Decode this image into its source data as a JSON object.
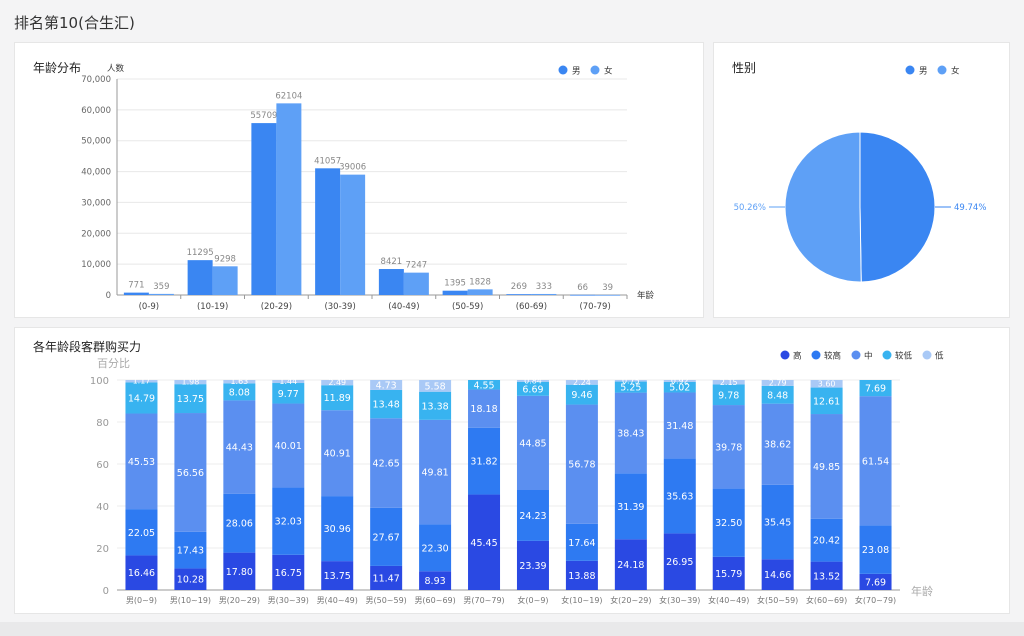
{
  "page": {
    "title": "排名第10(合生汇)"
  },
  "colors": {
    "male": "#3a86f2",
    "female": "#5ea0f6",
    "label": "#777777",
    "axis": "#999999",
    "grid": "#e8e8e8",
    "purchase_high": "#2a49e3",
    "purchase_mid_high": "#2e7af2",
    "purchase_mid": "#5b8ff0",
    "purchase_mid_low": "#38b3f0",
    "purchase_low": "#a9c9f6"
  },
  "chart_data": [
    {
      "id": "age-distribution",
      "type": "bar",
      "title": "年龄分布",
      "ylabel": "人数",
      "xlabel": "年龄",
      "ylim": [
        0,
        70000
      ],
      "yticks": [
        "0",
        "10,000",
        "20,000",
        "30,000",
        "40,000",
        "50,000",
        "60,000",
        "70,000"
      ],
      "categories": [
        "(0-9)",
        "(10-19)",
        "(20-29)",
        "(30-39)",
        "(40-49)",
        "(50-59)",
        "(60-69)",
        "(70-79)"
      ],
      "legend": "top-right",
      "series": [
        {
          "name": "男",
          "color": "#3a86f2",
          "values": [
            771,
            11295,
            55709,
            41057,
            8421,
            1395,
            269,
            66
          ]
        },
        {
          "name": "女",
          "color": "#5ea0f6",
          "values": [
            359,
            9298,
            62104,
            39006,
            7247,
            1828,
            333,
            39
          ]
        }
      ]
    },
    {
      "id": "gender",
      "type": "pie",
      "title": "性别",
      "legend": "top-right",
      "slices": [
        {
          "name": "男",
          "value": 49.74,
          "label": "49.74%",
          "color": "#3a86f2"
        },
        {
          "name": "女",
          "value": 50.26,
          "label": "50.26%",
          "color": "#5ea0f6"
        }
      ]
    },
    {
      "id": "purchase-power",
      "type": "bar",
      "stacked": true,
      "title": "各年龄段客群购买力",
      "ylabel": "百分比",
      "xlabel": "年龄",
      "ylim": [
        0,
        100
      ],
      "yticks": [
        "0",
        "20",
        "40",
        "60",
        "80",
        "100"
      ],
      "categories": [
        "男(0~9)",
        "男(10~19)",
        "男(20~29)",
        "男(30~39)",
        "男(40~49)",
        "男(50~59)",
        "男(60~69)",
        "男(70~79)",
        "女(0~9)",
        "女(10~19)",
        "女(20~29)",
        "女(30~39)",
        "女(40~49)",
        "女(50~59)",
        "女(60~69)",
        "女(70~79)"
      ],
      "legend": "top-right",
      "series": [
        {
          "name": "高",
          "color": "#2a49e3",
          "values": [
            16.46,
            10.28,
            17.8,
            16.75,
            13.75,
            11.47,
            8.93,
            45.45,
            23.39,
            13.88,
            24.18,
            26.95,
            15.79,
            14.66,
            13.52,
            7.69
          ]
        },
        {
          "name": "较高",
          "color": "#2e7af2",
          "values": [
            22.05,
            17.43,
            28.06,
            32.03,
            30.96,
            27.67,
            22.3,
            31.82,
            24.23,
            17.64,
            31.39,
            35.63,
            32.5,
            35.45,
            20.42,
            23.08
          ]
        },
        {
          "name": "中",
          "color": "#5b8ff0",
          "values": [
            45.53,
            56.56,
            44.43,
            40.01,
            40.91,
            42.65,
            49.81,
            18.18,
            44.85,
            56.78,
            38.43,
            31.48,
            39.78,
            38.62,
            49.85,
            61.54
          ]
        },
        {
          "name": "较低",
          "color": "#38b3f0",
          "values": [
            14.79,
            13.75,
            8.08,
            9.77,
            11.89,
            13.48,
            13.38,
            4.55,
            6.69,
            9.46,
            5.25,
            5.02,
            9.78,
            8.48,
            12.61,
            7.69
          ]
        },
        {
          "name": "低",
          "color": "#a9c9f6",
          "values": [
            1.17,
            1.98,
            1.63,
            1.44,
            2.49,
            4.73,
            5.58,
            0.0,
            0.84,
            2.24,
            0.75,
            0.92,
            2.15,
            2.79,
            3.6,
            0.0
          ]
        }
      ],
      "segment_labels": [
        [
          "16.46",
          "10.28",
          "17.80",
          "16.75",
          "13.75",
          "11.47",
          "8.93",
          "45.45",
          "23.39",
          "13.88",
          "24.18",
          "26.95",
          "15.79",
          "14.66",
          "13.52",
          "7.69"
        ],
        [
          "22.05",
          "17.43",
          "28.06",
          "32.03",
          "30.96",
          "27.67",
          "22.30",
          "31.82",
          "24.23",
          "17.64",
          "31.39",
          "35.63",
          "32.50",
          "35.45",
          "20.42",
          "23.08"
        ],
        [
          "45.53",
          "56.56",
          "44.43",
          "40.01",
          "40.91",
          "42.65",
          "49.81",
          "18.18",
          "44.85",
          "56.78",
          "38.43",
          "31.48",
          "39.78",
          "38.62",
          "49.85",
          "61.54"
        ],
        [
          "14.79",
          "13.75",
          "8.08",
          "9.77",
          "11.89",
          "13.48",
          "13.38",
          "4.55",
          "6.69",
          "9.46",
          "5.25",
          "5.02",
          "9.78",
          "8.48",
          "12.61",
          "7.69"
        ],
        [
          "1.17",
          "1.98",
          "1.63",
          "1.44",
          "2.49",
          "4.73",
          "5.58",
          "",
          "0.84",
          "2.24",
          "0.75",
          "0.92",
          "2.15",
          "2.79",
          "3.60",
          ""
        ]
      ]
    }
  ]
}
